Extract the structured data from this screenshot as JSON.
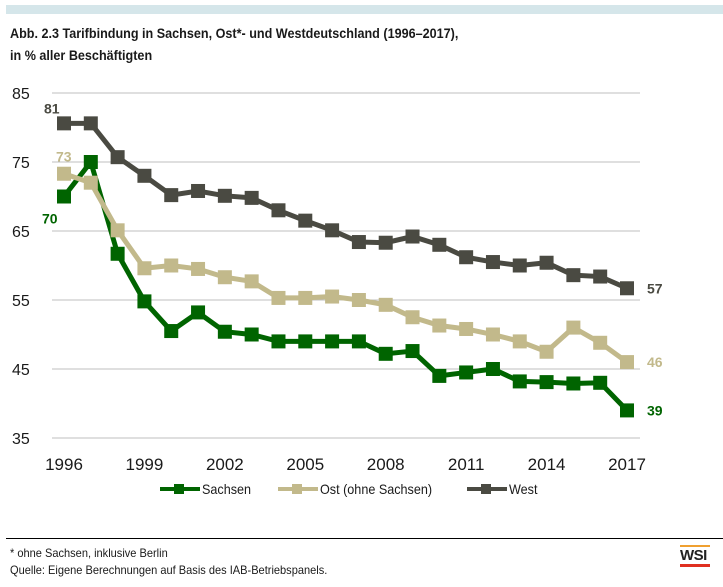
{
  "header": {
    "title_line1": "Abb. 2.3   Tarifbindung in Sachsen, Ost*- und Westdeutschland (1996–2017),",
    "title_line2": "in % aller Beschäftigten"
  },
  "footer": {
    "note": "* ohne Sachsen, inklusive Berlin",
    "source": "Quelle: Eigene Berechnungen auf Basis des IAB-Betriebspanels.",
    "logo_text": "WSI",
    "logo_colors": {
      "top": "#f0a030",
      "bottom": "#e03020"
    }
  },
  "chart_data": {
    "type": "line",
    "title": "Tarifbindung in Sachsen, Ost*- und Westdeutschland (1996–2017), in % aller Beschäftigten",
    "xlabel": "",
    "ylabel": "",
    "ylim": [
      35,
      85
    ],
    "yticks": [
      35,
      45,
      55,
      65,
      75,
      85
    ],
    "xticks": [
      1996,
      1999,
      2002,
      2005,
      2008,
      2011,
      2014,
      2017
    ],
    "grid": true,
    "legend_position": "bottom",
    "x": [
      1996,
      1997,
      1998,
      1999,
      2000,
      2001,
      2002,
      2003,
      2004,
      2005,
      2006,
      2007,
      2008,
      2009,
      2010,
      2011,
      2012,
      2013,
      2014,
      2015,
      2016,
      2017
    ],
    "series": [
      {
        "name": "Sachsen",
        "color": "#006400",
        "values": [
          70,
          75,
          61.7,
          54.8,
          50.5,
          53.2,
          50.4,
          50,
          49,
          49,
          49,
          49,
          47.2,
          47.6,
          44,
          44.5,
          45,
          43.2,
          43.1,
          42.9,
          43,
          39
        ],
        "labels": [
          {
            "index": 0,
            "text": "70",
            "pos": "below-left"
          },
          {
            "index": 21,
            "text": "39",
            "pos": "right"
          }
        ]
      },
      {
        "name": "Ost (ohne Sachsen)",
        "color": "#c2b98b",
        "values": [
          73.3,
          72,
          65.1,
          59.6,
          60,
          59.5,
          58.3,
          57.7,
          55.3,
          55.3,
          55.5,
          55,
          54.3,
          52.5,
          51.3,
          50.8,
          50,
          49,
          47.5,
          51,
          48.8,
          46
        ],
        "labels": [
          {
            "index": 0,
            "text": "73",
            "pos": "above"
          },
          {
            "index": 21,
            "text": "46",
            "pos": "right"
          }
        ]
      },
      {
        "name": "West",
        "color": "#4a4a42",
        "values": [
          80.6,
          80.6,
          75.7,
          73,
          70.2,
          70.8,
          70.1,
          69.8,
          68,
          66.5,
          65.1,
          63.4,
          63.3,
          64.2,
          63,
          61.2,
          60.5,
          60,
          60.4,
          58.6,
          58.4,
          56.7
        ],
        "labels": [
          {
            "index": 0,
            "text": "81",
            "pos": "above-left"
          },
          {
            "index": 21,
            "text": "57",
            "pos": "right"
          }
        ]
      }
    ]
  }
}
